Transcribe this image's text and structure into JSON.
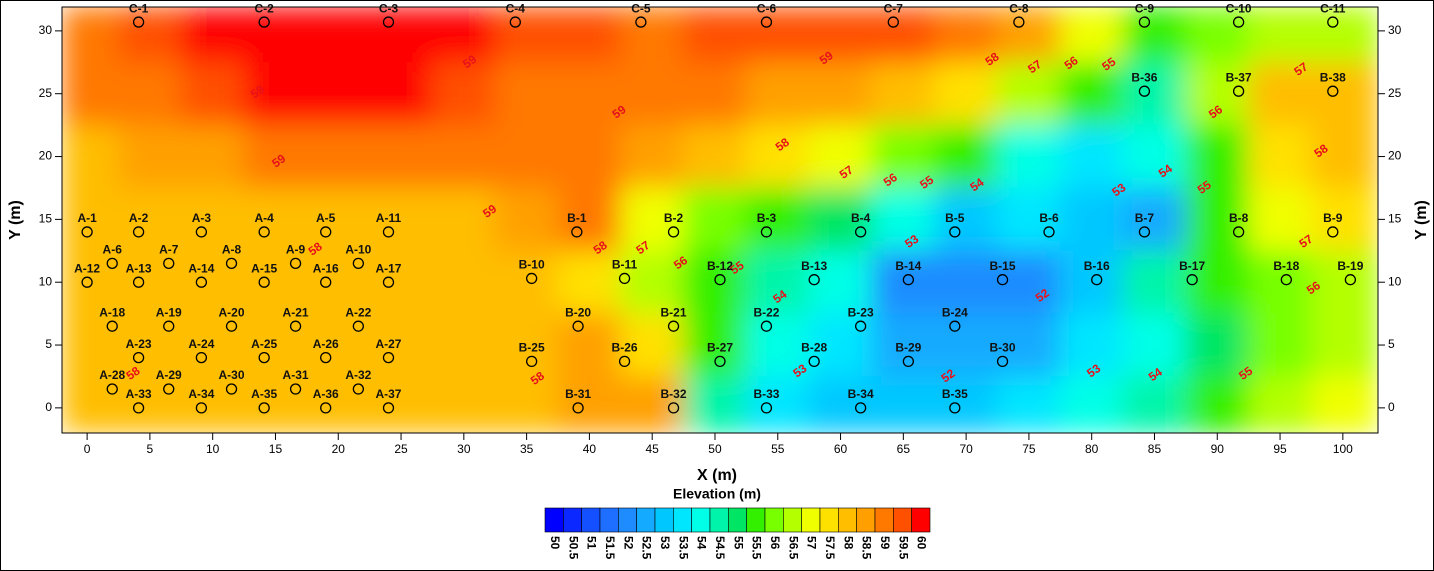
{
  "chart_data": {
    "type": "contour",
    "x_label": "X (m)",
    "y_label": "Y (m)",
    "xlim": [
      -2,
      102.8
    ],
    "ylim": [
      -2,
      31.9
    ],
    "xticks": [
      0,
      5,
      10,
      15,
      20,
      25,
      30,
      35,
      40,
      45,
      50,
      55,
      60,
      65,
      70,
      75,
      80,
      85,
      90,
      95,
      100
    ],
    "yticks": [
      0,
      5,
      10,
      15,
      20,
      25,
      30
    ],
    "grid": {
      "x": [
        0,
        5,
        10,
        15,
        20,
        25,
        30,
        35,
        40,
        45,
        50,
        55,
        60,
        65,
        70,
        75,
        80,
        85,
        90,
        95,
        100
      ],
      "y": [
        30,
        25,
        20,
        15,
        10,
        5,
        0
      ],
      "z": [
        [
          59.2,
          59.6,
          60,
          60,
          60,
          60,
          60,
          59.8,
          59.5,
          59.3,
          59.5,
          59.6,
          59.6,
          59.5,
          59.2,
          58.5,
          57,
          55.5,
          56,
          56.5,
          56.5
        ],
        [
          59,
          59.3,
          59.7,
          60,
          60,
          60,
          59.8,
          59.3,
          59,
          59,
          59,
          58.8,
          58.6,
          58.2,
          57.5,
          56.5,
          55.5,
          54.8,
          56.5,
          58,
          58.3
        ],
        [
          58.3,
          58.6,
          58.8,
          59,
          59.2,
          59.2,
          59.2,
          59.2,
          59.3,
          58.5,
          58.2,
          57.5,
          57,
          56.3,
          55.5,
          54.3,
          53.5,
          54,
          55.5,
          57.8,
          58.2
        ],
        [
          58.1,
          58.1,
          58.1,
          58.1,
          58.1,
          58.1,
          58.3,
          58.8,
          59,
          57,
          56.2,
          55.5,
          55,
          54,
          53.3,
          53.5,
          53.2,
          52.8,
          55.5,
          57,
          57.5
        ],
        [
          58.1,
          58.1,
          58.1,
          58.1,
          58.1,
          58.2,
          58.2,
          58.3,
          57.5,
          56.5,
          55.8,
          54.5,
          54.3,
          52,
          52.2,
          52.3,
          53.3,
          54.5,
          55.5,
          56,
          56.8
        ],
        [
          58,
          58,
          58,
          58,
          58,
          58,
          58,
          58.2,
          58.5,
          57.5,
          55.5,
          54,
          53.5,
          52.5,
          52.8,
          52.8,
          53.5,
          54.3,
          55.3,
          56,
          56.5
        ],
        [
          58,
          58,
          58,
          58,
          58,
          58,
          58,
          58.3,
          58.8,
          58.5,
          54.5,
          53.5,
          53.3,
          53,
          53.3,
          53.5,
          54,
          54.8,
          55.8,
          56.5,
          57
        ]
      ]
    },
    "points": [
      {
        "name": "C-1",
        "x": 4.1,
        "y": 30.7
      },
      {
        "name": "C-2",
        "x": 14.1,
        "y": 30.7
      },
      {
        "name": "C-3",
        "x": 24.0,
        "y": 30.7
      },
      {
        "name": "C-4",
        "x": 34.1,
        "y": 30.7
      },
      {
        "name": "C-5",
        "x": 44.1,
        "y": 30.7
      },
      {
        "name": "C-6",
        "x": 54.1,
        "y": 30.7
      },
      {
        "name": "C-7",
        "x": 64.2,
        "y": 30.7
      },
      {
        "name": "C-8",
        "x": 74.2,
        "y": 30.7
      },
      {
        "name": "C-9",
        "x": 84.2,
        "y": 30.7
      },
      {
        "name": "C-10",
        "x": 91.7,
        "y": 30.7
      },
      {
        "name": "C-11",
        "x": 99.2,
        "y": 30.7
      },
      {
        "name": "B-36",
        "x": 84.2,
        "y": 25.2
      },
      {
        "name": "B-37",
        "x": 91.7,
        "y": 25.2
      },
      {
        "name": "B-38",
        "x": 99.2,
        "y": 25.2
      },
      {
        "name": "A-1",
        "x": 0,
        "y": 14
      },
      {
        "name": "A-2",
        "x": 4.1,
        "y": 14
      },
      {
        "name": "A-3",
        "x": 9.1,
        "y": 14
      },
      {
        "name": "A-4",
        "x": 14.1,
        "y": 14
      },
      {
        "name": "A-5",
        "x": 19.0,
        "y": 14
      },
      {
        "name": "A-11",
        "x": 24.0,
        "y": 14
      },
      {
        "name": "B-1",
        "x": 39.0,
        "y": 14
      },
      {
        "name": "B-2",
        "x": 46.7,
        "y": 14
      },
      {
        "name": "B-3",
        "x": 54.1,
        "y": 14
      },
      {
        "name": "B-4",
        "x": 61.6,
        "y": 14
      },
      {
        "name": "B-5",
        "x": 69.1,
        "y": 14
      },
      {
        "name": "B-6",
        "x": 76.6,
        "y": 14
      },
      {
        "name": "B-7",
        "x": 84.2,
        "y": 14
      },
      {
        "name": "B-8",
        "x": 91.7,
        "y": 14
      },
      {
        "name": "B-9",
        "x": 99.2,
        "y": 14
      },
      {
        "name": "A-6",
        "x": 2.0,
        "y": 11.5
      },
      {
        "name": "A-7",
        "x": 6.5,
        "y": 11.5
      },
      {
        "name": "A-8",
        "x": 11.5,
        "y": 11.5
      },
      {
        "name": "A-9",
        "x": 16.6,
        "y": 11.5
      },
      {
        "name": "A-10",
        "x": 21.6,
        "y": 11.5
      },
      {
        "name": "A-12",
        "x": 0,
        "y": 10
      },
      {
        "name": "A-13",
        "x": 4.1,
        "y": 10
      },
      {
        "name": "A-14",
        "x": 9.1,
        "y": 10
      },
      {
        "name": "A-15",
        "x": 14.1,
        "y": 10
      },
      {
        "name": "A-16",
        "x": 19.0,
        "y": 10
      },
      {
        "name": "A-17",
        "x": 24.0,
        "y": 10
      },
      {
        "name": "B-10",
        "x": 35.4,
        "y": 10.3
      },
      {
        "name": "B-11",
        "x": 42.8,
        "y": 10.3
      },
      {
        "name": "B-12",
        "x": 50.4,
        "y": 10.2
      },
      {
        "name": "B-13",
        "x": 57.9,
        "y": 10.2
      },
      {
        "name": "B-14",
        "x": 65.4,
        "y": 10.2
      },
      {
        "name": "B-15",
        "x": 72.9,
        "y": 10.2
      },
      {
        "name": "B-16",
        "x": 80.4,
        "y": 10.2
      },
      {
        "name": "B-17",
        "x": 88.0,
        "y": 10.2
      },
      {
        "name": "B-18",
        "x": 95.5,
        "y": 10.2
      },
      {
        "name": "B-19",
        "x": 100.6,
        "y": 10.2
      },
      {
        "name": "A-18",
        "x": 2.0,
        "y": 6.5
      },
      {
        "name": "A-19",
        "x": 6.5,
        "y": 6.5
      },
      {
        "name": "A-20",
        "x": 11.5,
        "y": 6.5
      },
      {
        "name": "A-21",
        "x": 16.6,
        "y": 6.5
      },
      {
        "name": "A-22",
        "x": 21.6,
        "y": 6.5
      },
      {
        "name": "B-20",
        "x": 39.1,
        "y": 6.5
      },
      {
        "name": "B-21",
        "x": 46.7,
        "y": 6.5
      },
      {
        "name": "B-22",
        "x": 54.1,
        "y": 6.5
      },
      {
        "name": "B-23",
        "x": 61.6,
        "y": 6.5
      },
      {
        "name": "B-24",
        "x": 69.1,
        "y": 6.5
      },
      {
        "name": "A-23",
        "x": 4.1,
        "y": 4
      },
      {
        "name": "A-24",
        "x": 9.1,
        "y": 4
      },
      {
        "name": "A-25",
        "x": 14.1,
        "y": 4
      },
      {
        "name": "A-26",
        "x": 19.0,
        "y": 4
      },
      {
        "name": "A-27",
        "x": 24.0,
        "y": 4
      },
      {
        "name": "B-25",
        "x": 35.4,
        "y": 3.7
      },
      {
        "name": "B-26",
        "x": 42.8,
        "y": 3.7
      },
      {
        "name": "B-27",
        "x": 50.4,
        "y": 3.7
      },
      {
        "name": "B-28",
        "x": 57.9,
        "y": 3.7
      },
      {
        "name": "B-29",
        "x": 65.4,
        "y": 3.7
      },
      {
        "name": "B-30",
        "x": 72.9,
        "y": 3.7
      },
      {
        "name": "A-28",
        "x": 2.0,
        "y": 1.5
      },
      {
        "name": "A-29",
        "x": 6.5,
        "y": 1.5
      },
      {
        "name": "A-30",
        "x": 11.5,
        "y": 1.5
      },
      {
        "name": "A-31",
        "x": 16.6,
        "y": 1.5
      },
      {
        "name": "A-32",
        "x": 21.6,
        "y": 1.5
      },
      {
        "name": "A-33",
        "x": 4.1,
        "y": 0
      },
      {
        "name": "A-34",
        "x": 9.1,
        "y": 0
      },
      {
        "name": "A-35",
        "x": 14.1,
        "y": 0
      },
      {
        "name": "A-36",
        "x": 19.0,
        "y": 0
      },
      {
        "name": "A-37",
        "x": 24.0,
        "y": 0
      },
      {
        "name": "B-31",
        "x": 39.1,
        "y": 0
      },
      {
        "name": "B-32",
        "x": 46.7,
        "y": 0
      },
      {
        "name": "B-33",
        "x": 54.1,
        "y": 0
      },
      {
        "name": "B-34",
        "x": 61.6,
        "y": 0
      },
      {
        "name": "B-35",
        "x": 69.1,
        "y": 0
      }
    ],
    "contour_labels": [
      {
        "value": 59,
        "x": 30.5,
        "y": 27.5
      },
      {
        "value": 59,
        "x": 13.6,
        "y": 25.1
      },
      {
        "value": 59,
        "x": 15.3,
        "y": 19.6
      },
      {
        "value": 59,
        "x": 32.1,
        "y": 15.6
      },
      {
        "value": 59,
        "x": 42.4,
        "y": 23.5
      },
      {
        "value": 59,
        "x": 58.9,
        "y": 27.8
      },
      {
        "value": 58,
        "x": 72.1,
        "y": 27.7
      },
      {
        "value": 57,
        "x": 75.5,
        "y": 27.1
      },
      {
        "value": 56,
        "x": 78.4,
        "y": 27.4
      },
      {
        "value": 55,
        "x": 81.4,
        "y": 27.3
      },
      {
        "value": 58,
        "x": 55.4,
        "y": 20.9
      },
      {
        "value": 57,
        "x": 60.5,
        "y": 18.7
      },
      {
        "value": 56,
        "x": 64.0,
        "y": 18.1
      },
      {
        "value": 55,
        "x": 66.9,
        "y": 17.9
      },
      {
        "value": 54,
        "x": 70.9,
        "y": 17.7
      },
      {
        "value": 53,
        "x": 82.2,
        "y": 17.3
      },
      {
        "value": 54,
        "x": 85.9,
        "y": 18.8
      },
      {
        "value": 55,
        "x": 89.0,
        "y": 17.5
      },
      {
        "value": 56,
        "x": 89.9,
        "y": 23.5
      },
      {
        "value": 57,
        "x": 96.7,
        "y": 26.9
      },
      {
        "value": 58,
        "x": 98.3,
        "y": 20.4
      },
      {
        "value": 57,
        "x": 97.1,
        "y": 13.2
      },
      {
        "value": 56,
        "x": 97.7,
        "y": 9.5
      },
      {
        "value": 55,
        "x": 92.3,
        "y": 2.7
      },
      {
        "value": 54,
        "x": 85.1,
        "y": 2.6
      },
      {
        "value": 53,
        "x": 80.2,
        "y": 2.9
      },
      {
        "value": 52,
        "x": 76.1,
        "y": 8.9
      },
      {
        "value": 52,
        "x": 68.6,
        "y": 2.5
      },
      {
        "value": 53,
        "x": 65.7,
        "y": 13.2
      },
      {
        "value": 53,
        "x": 56.8,
        "y": 2.9
      },
      {
        "value": 54,
        "x": 55.2,
        "y": 8.8
      },
      {
        "value": 55,
        "x": 51.8,
        "y": 11.1
      },
      {
        "value": 56,
        "x": 47.3,
        "y": 11.5
      },
      {
        "value": 57,
        "x": 44.3,
        "y": 12.7
      },
      {
        "value": 58,
        "x": 40.9,
        "y": 12.7
      },
      {
        "value": 58,
        "x": 18.2,
        "y": 12.6
      },
      {
        "value": 58,
        "x": 35.9,
        "y": 2.3
      },
      {
        "value": 58,
        "x": 3.7,
        "y": 2.7
      }
    ],
    "colorbar": {
      "title": "Elevation (m)",
      "levels": [
        50,
        50.5,
        51,
        51.5,
        52,
        52.5,
        53,
        53.5,
        54,
        54.5,
        55,
        55.5,
        56,
        56.5,
        57,
        57.5,
        58,
        58.5,
        59,
        59.5,
        60
      ],
      "colors": [
        "#0000ff",
        "#0a28ff",
        "#1450ff",
        "#1e6eff",
        "#1e8cff",
        "#14aaff",
        "#00c8ff",
        "#00e6ff",
        "#00ffe6",
        "#00f5aa",
        "#00e664",
        "#32f000",
        "#78ff00",
        "#b4ff00",
        "#f0ff00",
        "#ffe100",
        "#ffbe00",
        "#ffa000",
        "#ff7800",
        "#ff5000",
        "#ff0000"
      ]
    }
  }
}
